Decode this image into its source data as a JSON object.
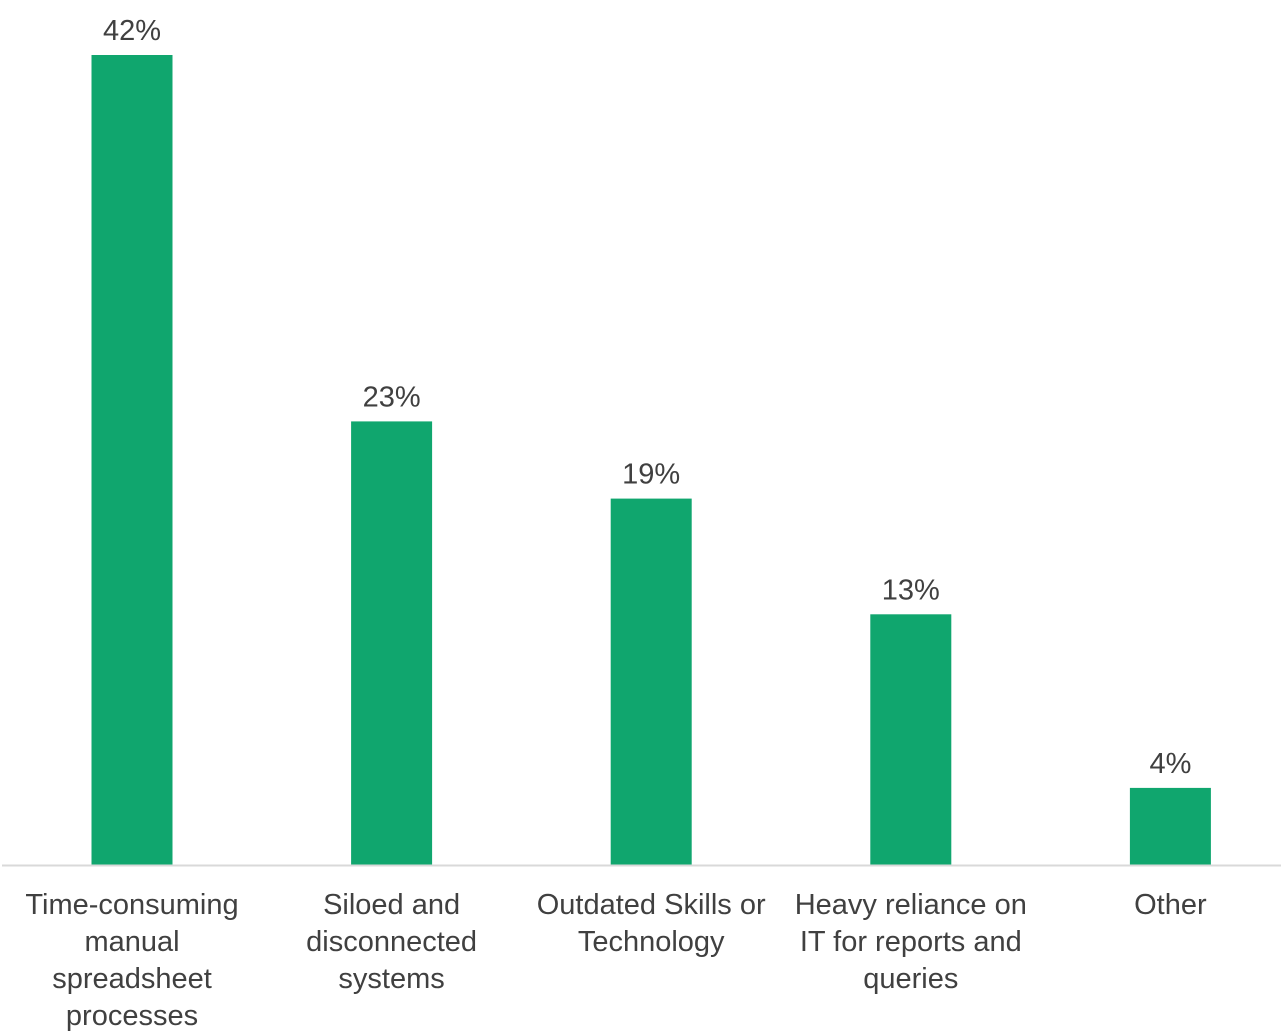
{
  "chart_data": {
    "type": "bar",
    "title": "",
    "xlabel": "",
    "ylabel": "",
    "categories": [
      "Time-consuming manual spreadsheet processes",
      "Siloed and disconnected systems",
      "Outdated Skills or Technology",
      "Heavy reliance on IT for reports and queries",
      "Other"
    ],
    "category_lines": [
      [
        "Time-consuming",
        "manual",
        "spreadsheet",
        "processes"
      ],
      [
        "Siloed and",
        "disconnected",
        "systems"
      ],
      [
        "Outdated Skills or",
        "Technology"
      ],
      [
        "Heavy reliance on",
        "IT for reports and",
        "queries"
      ],
      [
        "Other"
      ]
    ],
    "values": [
      42,
      23,
      19,
      13,
      4
    ],
    "data_labels": [
      "42%",
      "23%",
      "19%",
      "13%",
      "4%"
    ],
    "ylim": [
      0,
      42
    ],
    "unit": "%",
    "grid": false,
    "legend": "none",
    "colors": {
      "bar": "#10a66e",
      "axis": "#d9d9d9",
      "text": "#404040"
    }
  }
}
